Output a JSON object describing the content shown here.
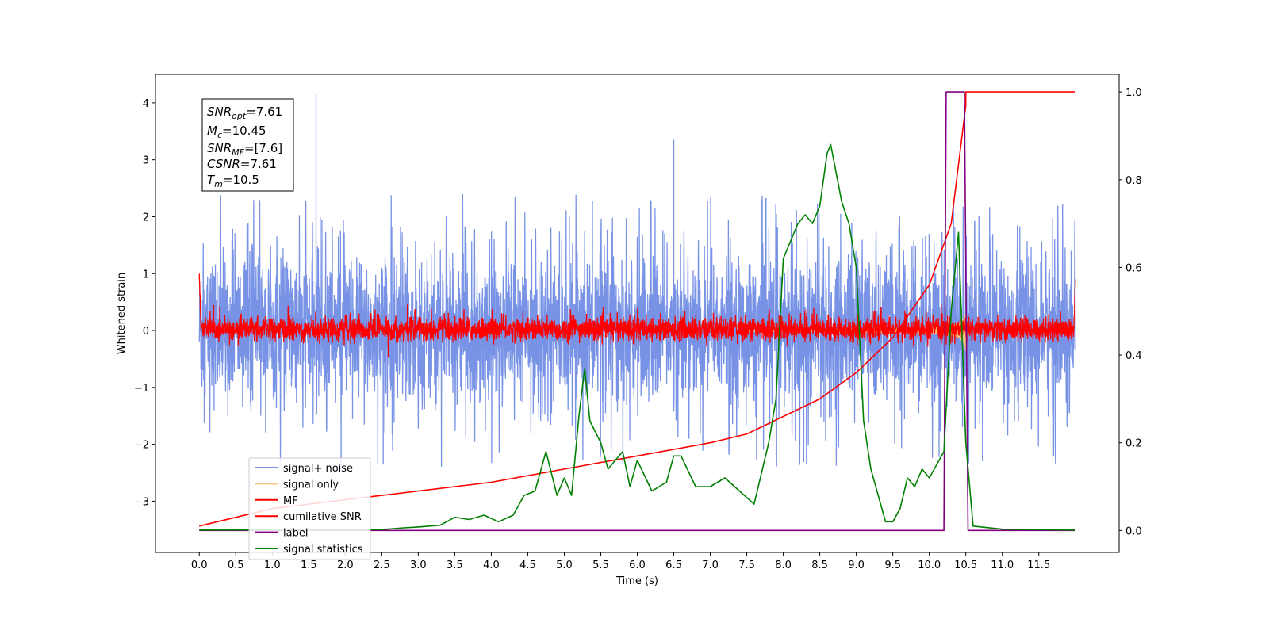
{
  "chart_data": {
    "type": "line",
    "xlabel": "Time (s)",
    "ylabel": "Whitened strain",
    "xlim": [
      -0.6,
      12.6
    ],
    "ylim_left": [
      -3.9,
      4.5
    ],
    "ylim_right": [
      -0.05,
      1.04
    ],
    "x_ticks": [
      "0.0",
      "0.5",
      "1.0",
      "1.5",
      "2.0",
      "2.5",
      "3.0",
      "3.5",
      "4.0",
      "4.5",
      "5.0",
      "5.5",
      "6.0",
      "6.5",
      "7.0",
      "7.5",
      "8.0",
      "8.5",
      "9.0",
      "9.5",
      "10.0",
      "10.5",
      "11.0",
      "11.5"
    ],
    "y_left_ticks": [
      "−3",
      "−2",
      "−1",
      "0",
      "1",
      "2",
      "3",
      "4"
    ],
    "y_right_ticks": [
      "0.0",
      "0.2",
      "0.4",
      "0.6",
      "0.8",
      "1.0"
    ],
    "legend_position": "lower-left",
    "annotation": {
      "snr_opt": "7.61",
      "mc": "10.45",
      "snr_mf": "[7.6]",
      "csnr": "7.61",
      "tm": "10.5"
    },
    "series": [
      {
        "name": "signal+ noise",
        "color": "#7893e6",
        "axis": "left",
        "x_range": [
          0,
          12.0
        ],
        "envelope": {
          "typical": [
            -1.3,
            1.4
          ],
          "extremes": [
            -2.9,
            4.15
          ]
        }
      },
      {
        "name": "signal only",
        "color": "#f5c77e",
        "axis": "left",
        "x_range": [
          0,
          12.0
        ],
        "chirp_peak": 10.5,
        "peak_amplitude": 0.4
      },
      {
        "name": "MF",
        "color": "#ff0000",
        "axis": "left",
        "x_range": [
          0,
          12.0
        ],
        "envelope": {
          "typical": [
            -0.2,
            0.3
          ],
          "start_value": 1.0
        }
      },
      {
        "name": "cumilative SNR",
        "color": "#ff0000",
        "axis": "right",
        "points": [
          [
            0,
            0.01
          ],
          [
            1,
            0.05
          ],
          [
            2,
            0.07
          ],
          [
            3,
            0.09
          ],
          [
            4,
            0.11
          ],
          [
            5,
            0.14
          ],
          [
            6,
            0.17
          ],
          [
            7,
            0.2
          ],
          [
            7.5,
            0.22
          ],
          [
            8,
            0.26
          ],
          [
            8.5,
            0.3
          ],
          [
            9,
            0.36
          ],
          [
            9.5,
            0.44
          ],
          [
            10,
            0.56
          ],
          [
            10.3,
            0.7
          ],
          [
            10.5,
            0.97
          ],
          [
            10.5,
            1.0
          ],
          [
            12,
            1.0
          ]
        ]
      },
      {
        "name": "label",
        "color": "#800080",
        "axis": "right",
        "points": [
          [
            0,
            0
          ],
          [
            10.2,
            0
          ],
          [
            10.23,
            1.0
          ],
          [
            10.48,
            1.0
          ],
          [
            10.53,
            0
          ],
          [
            12,
            0
          ]
        ]
      },
      {
        "name": "signal statistics",
        "color": "#008000",
        "axis": "right",
        "points": [
          [
            0,
            0.001
          ],
          [
            2.5,
            0.002
          ],
          [
            2.8,
            0.006
          ],
          [
            3.0,
            0.008
          ],
          [
            3.3,
            0.012
          ],
          [
            3.5,
            0.03
          ],
          [
            3.7,
            0.025
          ],
          [
            3.9,
            0.035
          ],
          [
            4.1,
            0.02
          ],
          [
            4.3,
            0.035
          ],
          [
            4.45,
            0.08
          ],
          [
            4.6,
            0.09
          ],
          [
            4.75,
            0.18
          ],
          [
            4.9,
            0.08
          ],
          [
            5.0,
            0.12
          ],
          [
            5.1,
            0.08
          ],
          [
            5.2,
            0.26
          ],
          [
            5.28,
            0.37
          ],
          [
            5.35,
            0.25
          ],
          [
            5.5,
            0.2
          ],
          [
            5.6,
            0.14
          ],
          [
            5.8,
            0.18
          ],
          [
            5.9,
            0.1
          ],
          [
            6.0,
            0.16
          ],
          [
            6.2,
            0.09
          ],
          [
            6.4,
            0.11
          ],
          [
            6.5,
            0.17
          ],
          [
            6.6,
            0.17
          ],
          [
            6.8,
            0.1
          ],
          [
            7.0,
            0.1
          ],
          [
            7.2,
            0.12
          ],
          [
            7.4,
            0.09
          ],
          [
            7.6,
            0.06
          ],
          [
            7.8,
            0.2
          ],
          [
            7.9,
            0.3
          ],
          [
            8.0,
            0.62
          ],
          [
            8.2,
            0.7
          ],
          [
            8.3,
            0.72
          ],
          [
            8.4,
            0.7
          ],
          [
            8.5,
            0.74
          ],
          [
            8.6,
            0.86
          ],
          [
            8.65,
            0.88
          ],
          [
            8.8,
            0.75
          ],
          [
            8.9,
            0.7
          ],
          [
            9.0,
            0.6
          ],
          [
            9.1,
            0.25
          ],
          [
            9.2,
            0.14
          ],
          [
            9.4,
            0.02
          ],
          [
            9.5,
            0.02
          ],
          [
            9.6,
            0.05
          ],
          [
            9.7,
            0.12
          ],
          [
            9.8,
            0.1
          ],
          [
            9.9,
            0.14
          ],
          [
            10.0,
            0.12
          ],
          [
            10.1,
            0.15
          ],
          [
            10.2,
            0.18
          ],
          [
            10.3,
            0.5
          ],
          [
            10.4,
            0.68
          ],
          [
            10.5,
            0.2
          ],
          [
            10.6,
            0.01
          ],
          [
            11.0,
            0.003
          ],
          [
            12.0,
            0.001
          ]
        ]
      }
    ]
  }
}
